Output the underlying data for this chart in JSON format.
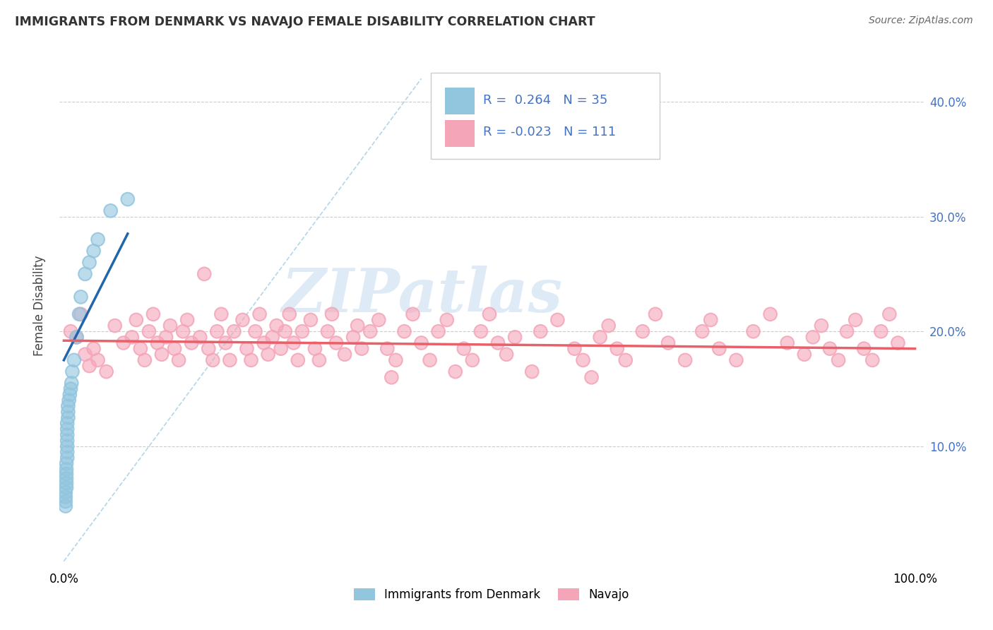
{
  "title": "IMMIGRANTS FROM DENMARK VS NAVAJO FEMALE DISABILITY CORRELATION CHART",
  "source": "Source: ZipAtlas.com",
  "ylabel": "Female Disability",
  "blue_color": "#92c5de",
  "pink_color": "#f4a5b8",
  "blue_line_color": "#2166ac",
  "pink_line_color": "#e8606a",
  "diag_color": "#92c5de",
  "watermark_color": "#c8dff0",
  "watermark_text": "ZIPatlas",
  "legend_text1": "R =  0.264   N = 35",
  "legend_text2": "R = -0.023   N = 111",
  "blue_scatter_x": [
    0.002,
    0.002,
    0.002,
    0.002,
    0.003,
    0.003,
    0.003,
    0.003,
    0.003,
    0.003,
    0.004,
    0.004,
    0.004,
    0.004,
    0.004,
    0.004,
    0.004,
    0.005,
    0.005,
    0.005,
    0.006,
    0.007,
    0.008,
    0.009,
    0.01,
    0.012,
    0.015,
    0.018,
    0.02,
    0.025,
    0.03,
    0.035,
    0.04,
    0.055,
    0.075
  ],
  "blue_scatter_y": [
    0.048,
    0.052,
    0.056,
    0.06,
    0.064,
    0.068,
    0.072,
    0.076,
    0.08,
    0.085,
    0.09,
    0.095,
    0.1,
    0.105,
    0.11,
    0.115,
    0.12,
    0.125,
    0.13,
    0.135,
    0.14,
    0.145,
    0.15,
    0.155,
    0.165,
    0.175,
    0.195,
    0.215,
    0.23,
    0.25,
    0.26,
    0.27,
    0.28,
    0.305,
    0.315
  ],
  "pink_scatter_x": [
    0.008,
    0.015,
    0.02,
    0.025,
    0.03,
    0.035,
    0.04,
    0.05,
    0.06,
    0.07,
    0.08,
    0.085,
    0.09,
    0.095,
    0.1,
    0.105,
    0.11,
    0.115,
    0.12,
    0.125,
    0.13,
    0.135,
    0.14,
    0.145,
    0.15,
    0.16,
    0.165,
    0.17,
    0.175,
    0.18,
    0.185,
    0.19,
    0.195,
    0.2,
    0.21,
    0.215,
    0.22,
    0.225,
    0.23,
    0.235,
    0.24,
    0.245,
    0.25,
    0.255,
    0.26,
    0.265,
    0.27,
    0.275,
    0.28,
    0.29,
    0.295,
    0.3,
    0.31,
    0.315,
    0.32,
    0.33,
    0.34,
    0.345,
    0.35,
    0.36,
    0.37,
    0.38,
    0.385,
    0.39,
    0.4,
    0.41,
    0.42,
    0.43,
    0.44,
    0.45,
    0.46,
    0.47,
    0.48,
    0.49,
    0.5,
    0.51,
    0.52,
    0.53,
    0.55,
    0.56,
    0.58,
    0.6,
    0.61,
    0.62,
    0.63,
    0.64,
    0.65,
    0.66,
    0.68,
    0.695,
    0.71,
    0.73,
    0.75,
    0.76,
    0.77,
    0.79,
    0.81,
    0.83,
    0.85,
    0.87,
    0.88,
    0.89,
    0.9,
    0.91,
    0.92,
    0.93,
    0.94,
    0.95,
    0.96,
    0.97,
    0.98
  ],
  "pink_scatter_y": [
    0.2,
    0.195,
    0.215,
    0.18,
    0.17,
    0.185,
    0.175,
    0.165,
    0.205,
    0.19,
    0.195,
    0.21,
    0.185,
    0.175,
    0.2,
    0.215,
    0.19,
    0.18,
    0.195,
    0.205,
    0.185,
    0.175,
    0.2,
    0.21,
    0.19,
    0.195,
    0.25,
    0.185,
    0.175,
    0.2,
    0.215,
    0.19,
    0.175,
    0.2,
    0.21,
    0.185,
    0.175,
    0.2,
    0.215,
    0.19,
    0.18,
    0.195,
    0.205,
    0.185,
    0.2,
    0.215,
    0.19,
    0.175,
    0.2,
    0.21,
    0.185,
    0.175,
    0.2,
    0.215,
    0.19,
    0.18,
    0.195,
    0.205,
    0.185,
    0.2,
    0.21,
    0.185,
    0.16,
    0.175,
    0.2,
    0.215,
    0.19,
    0.175,
    0.2,
    0.21,
    0.165,
    0.185,
    0.175,
    0.2,
    0.215,
    0.19,
    0.18,
    0.195,
    0.165,
    0.2,
    0.21,
    0.185,
    0.175,
    0.16,
    0.195,
    0.205,
    0.185,
    0.175,
    0.2,
    0.215,
    0.19,
    0.175,
    0.2,
    0.21,
    0.185,
    0.175,
    0.2,
    0.215,
    0.19,
    0.18,
    0.195,
    0.205,
    0.185,
    0.175,
    0.2,
    0.21,
    0.185,
    0.175,
    0.2,
    0.215,
    0.19
  ],
  "blue_trend_x": [
    0.0,
    0.075
  ],
  "blue_trend_y": [
    0.175,
    0.285
  ],
  "pink_trend_x": [
    0.0,
    1.0
  ],
  "pink_trend_y": [
    0.192,
    0.185
  ],
  "diag_line_x": [
    0.0,
    0.42
  ],
  "diag_line_y": [
    0.0,
    0.42
  ],
  "xlim": [
    -0.005,
    1.01
  ],
  "ylim": [
    -0.005,
    0.45
  ],
  "yticks": [
    0.1,
    0.2,
    0.3,
    0.4
  ],
  "ytick_labels": [
    "10.0%",
    "20.0%",
    "30.0%",
    "40.0%"
  ],
  "xtick_left": "0.0%",
  "xtick_right": "100.0%"
}
